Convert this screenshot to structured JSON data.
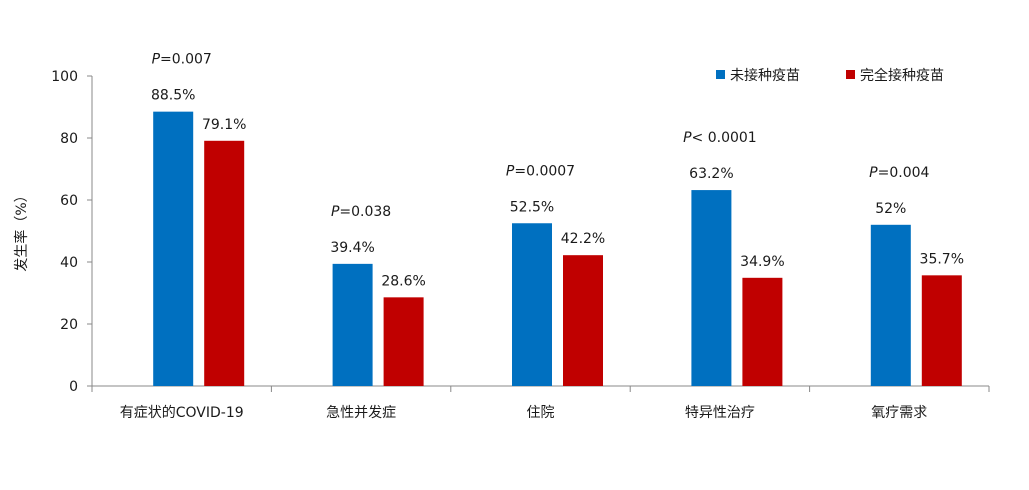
{
  "chart_data": {
    "type": "bar",
    "ylabel": "发生率（%）",
    "ylim": [
      0,
      100
    ],
    "yticks": [
      "0",
      "20",
      "40",
      "60",
      "80",
      "100"
    ],
    "grid": false,
    "legend_placement": "top-right",
    "categories": [
      "有症状的COVID-19",
      "急性并发症",
      "住院",
      "特异性治疗",
      "氧疗需求"
    ],
    "series": [
      {
        "name": "未接种疫苗",
        "color": "#0070C0",
        "values": [
          88.5,
          39.4,
          52.5,
          63.2,
          52
        ],
        "labels": [
          "88.5%",
          "39.4%",
          "52.5%",
          "63.2%",
          "52%"
        ]
      },
      {
        "name": "完全接种疫苗",
        "color": "#C00000",
        "values": [
          79.1,
          28.6,
          42.2,
          34.9,
          35.7
        ],
        "labels": [
          "79.1%",
          "28.6%",
          "42.2%",
          "34.9%",
          "35.7%"
        ]
      }
    ],
    "annotations": [
      {
        "italic": "P",
        "rest": "=0.007"
      },
      {
        "italic": "P",
        "rest": "=0.038"
      },
      {
        "italic": "P",
        "rest": "=0.0007"
      },
      {
        "italic": "P",
        "rest": "< 0.0001"
      },
      {
        "italic": "P",
        "rest": "=0.004"
      }
    ]
  }
}
